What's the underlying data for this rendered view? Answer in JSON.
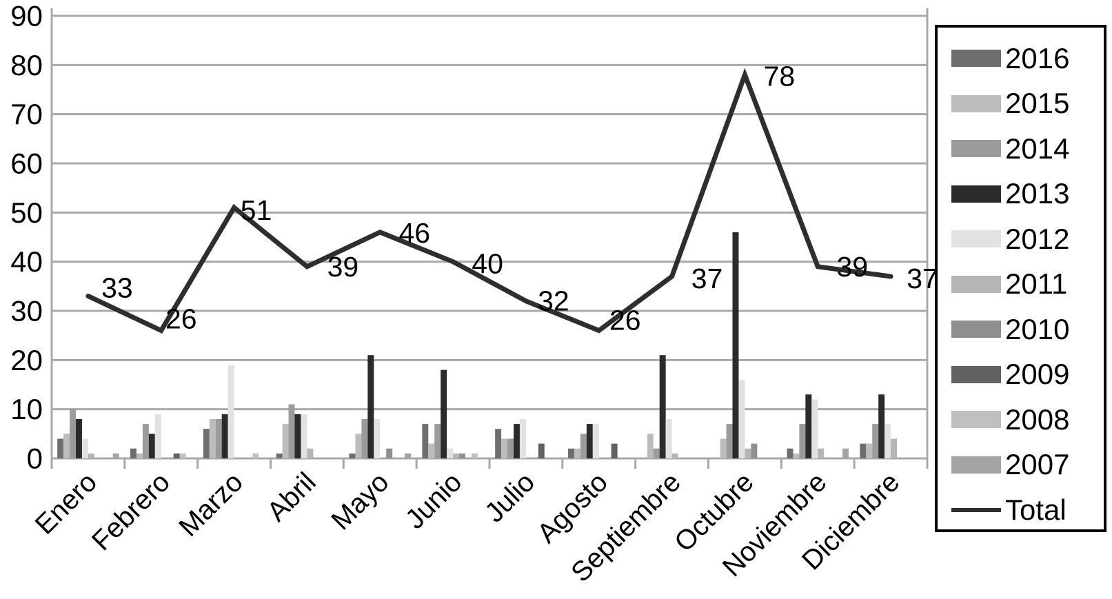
{
  "chart_data": {
    "type": "bar",
    "subtype": "grouped-bars-with-total-line",
    "title": "",
    "xlabel": "",
    "ylabel": "",
    "categories": [
      "Enero",
      "Febrero",
      "Marzo",
      "Abril",
      "Mayo",
      "Junio",
      "Julio",
      "Agosto",
      "Septiembre",
      "Octubre",
      "Noviembre",
      "Diciembre"
    ],
    "series": [
      {
        "name": "2016",
        "color": "#6e6e6e",
        "values": [
          4,
          2,
          6,
          1,
          1,
          7,
          6,
          2,
          0,
          0,
          2,
          3
        ]
      },
      {
        "name": "2015",
        "color": "#bcbcbc",
        "values": [
          5,
          1,
          8,
          7,
          5,
          3,
          4,
          2,
          5,
          4,
          1,
          3
        ]
      },
      {
        "name": "2014",
        "color": "#9b9b9b",
        "values": [
          10,
          7,
          8,
          11,
          8,
          7,
          4,
          5,
          2,
          7,
          7,
          7
        ]
      },
      {
        "name": "2013",
        "color": "#2b2b2b",
        "values": [
          8,
          5,
          9,
          9,
          21,
          18,
          7,
          7,
          21,
          46,
          13,
          13
        ]
      },
      {
        "name": "2012",
        "color": "#e2e2e2",
        "values": [
          4,
          9,
          19,
          9,
          8,
          2,
          8,
          7,
          8,
          16,
          12,
          7
        ]
      },
      {
        "name": "2011",
        "color": "#b5b5b5",
        "values": [
          1,
          0,
          0,
          2,
          0,
          1,
          0,
          0,
          1,
          2,
          2,
          4
        ]
      },
      {
        "name": "2010",
        "color": "#8f8f8f",
        "values": [
          0,
          0,
          0,
          0,
          2,
          1,
          0,
          0,
          0,
          3,
          0,
          0
        ]
      },
      {
        "name": "2009",
        "color": "#616161",
        "values": [
          0,
          1,
          0,
          0,
          0,
          0,
          3,
          3,
          0,
          0,
          0,
          0
        ]
      },
      {
        "name": "2008",
        "color": "#c0c0c0",
        "values": [
          0,
          1,
          1,
          0,
          0,
          1,
          0,
          0,
          0,
          0,
          0,
          0
        ]
      },
      {
        "name": "2007",
        "color": "#a3a3a3",
        "values": [
          1,
          0,
          0,
          0,
          1,
          0,
          0,
          0,
          0,
          0,
          2,
          0
        ]
      }
    ],
    "line_series": {
      "name": "Total",
      "color": "#2e2e2e",
      "values": [
        33,
        26,
        51,
        39,
        46,
        40,
        32,
        26,
        37,
        78,
        39,
        37
      ]
    },
    "point_labels": [
      "33",
      "26",
      "51",
      "39",
      "46",
      "40",
      "32",
      "26",
      "37",
      "78",
      "39",
      "37"
    ],
    "y_axis": {
      "min": 0,
      "max": 90,
      "step": 10,
      "tick_labels": [
        "0",
        "10",
        "20",
        "30",
        "40",
        "50",
        "60",
        "70",
        "80",
        "90"
      ]
    },
    "legend_entries": [
      "2016",
      "2015",
      "2014",
      "2013",
      "2012",
      "2011",
      "2010",
      "2009",
      "2008",
      "2007",
      "Total"
    ],
    "legend_position": "right",
    "grid": true
  },
  "colors": {
    "grid": "#a9a9a9",
    "axis_text": "#000000",
    "background": "#ffffff",
    "legend_border": "#000000"
  }
}
